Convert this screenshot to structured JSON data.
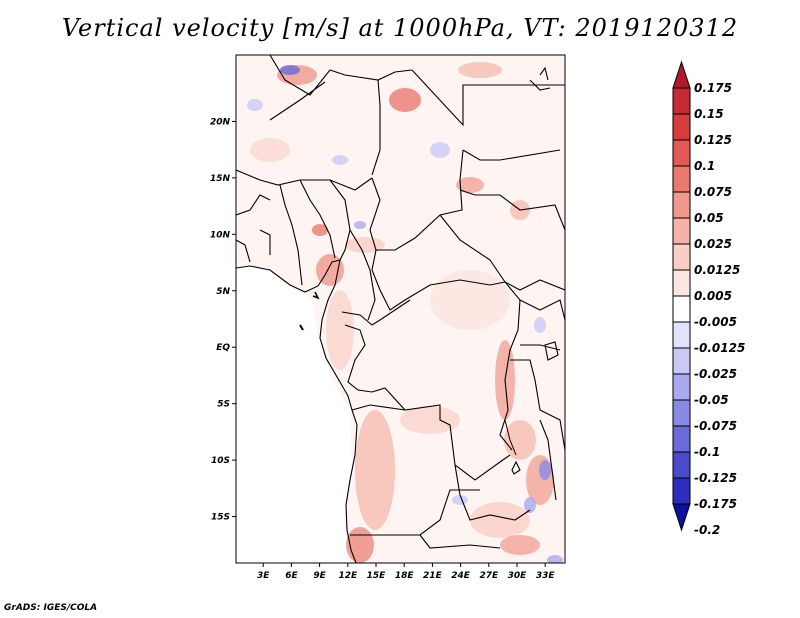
{
  "title": "Vertical velocity [m/s] at 1000hPa, VT: 2019120312",
  "credit": "GrADS: IGES/COLA",
  "map": {
    "region": "Central Africa",
    "lon_range": [
      0,
      35
    ],
    "lat_range": [
      -20,
      25
    ],
    "y_ticks": [
      {
        "value": 20,
        "label": "20N"
      },
      {
        "value": 15,
        "label": "15N"
      },
      {
        "value": 10,
        "label": "10N"
      },
      {
        "value": 5,
        "label": "5N"
      },
      {
        "value": 0,
        "label": "EQ"
      },
      {
        "value": -5,
        "label": "5S"
      },
      {
        "value": -10,
        "label": "10S"
      },
      {
        "value": -15,
        "label": "15S"
      }
    ],
    "x_ticks": [
      {
        "value": 3,
        "label": "3E"
      },
      {
        "value": 6,
        "label": "6E"
      },
      {
        "value": 9,
        "label": "9E"
      },
      {
        "value": 12,
        "label": "12E"
      },
      {
        "value": 15,
        "label": "15E"
      },
      {
        "value": 18,
        "label": "18E"
      },
      {
        "value": 21,
        "label": "21E"
      },
      {
        "value": 24,
        "label": "24E"
      },
      {
        "value": 27,
        "label": "27E"
      },
      {
        "value": 30,
        "label": "30E"
      },
      {
        "value": 33,
        "label": "33E"
      }
    ]
  },
  "colorbar": {
    "levels": [
      "0.175",
      "0.15",
      "0.125",
      "0.1",
      "0.075",
      "0.05",
      "0.025",
      "0.0125",
      "0.005",
      "-0.005",
      "-0.0125",
      "-0.025",
      "-0.05",
      "-0.075",
      "-0.1",
      "-0.125",
      "-0.175",
      "-0.2"
    ],
    "colors": [
      "#b2182b",
      "#c62a32",
      "#d63c3c",
      "#e15a55",
      "#ea7a70",
      "#f0988c",
      "#f5b3a8",
      "#f9cec6",
      "#fce6e1",
      "#ffffff",
      "#e2e2fb",
      "#c9c9f5",
      "#a9a9ee",
      "#8a8ae4",
      "#6a6ad8",
      "#4a4acb",
      "#2e2ebc",
      "#1010a0"
    ]
  }
}
